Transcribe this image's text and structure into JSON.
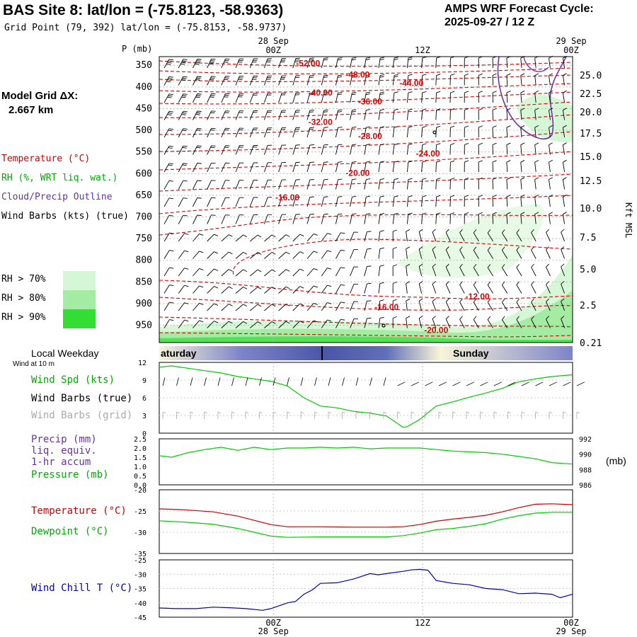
{
  "header": {
    "title": "BAS Site 8:  lat/lon = (-75.8123, -58.9363)",
    "grid_point": "Grid Point (79, 392) lat/lon = (-75.8153, -58.9737)",
    "cycle_line1": "AMPS WRF Forecast Cycle:",
    "cycle_line2": "2025-09-27 / 12  Z"
  },
  "legend": {
    "model_grid_line1": "Model Grid ΔX:",
    "model_grid_line2": "2.667 km",
    "temperature": "Temperature (°C)",
    "rh": "RH (%, WRT liq. wat.)",
    "cloud": "Cloud/Precip Outline",
    "wind_barbs": "Wind Barbs (kts) (true)",
    "rh70": "RH > 70%",
    "rh80": "RH > 80%",
    "rh90": "RH > 90%",
    "rh_colors": [
      "#d6f7d6",
      "#a4eba4",
      "#33dd33"
    ]
  },
  "time_axis": {
    "top_dates": [
      "28 Sep",
      "29 Sep"
    ],
    "top_times": [
      "00Z",
      "12Z",
      "00Z"
    ],
    "bottom_times": [
      "00Z",
      "12Z",
      "00Z"
    ],
    "bottom_dates": [
      "28 Sep",
      "29 Sep"
    ],
    "weekday_label": "Local Weekday",
    "weekday_left": "aturday",
    "weekday_right": "Sunday",
    "wind_at": "Wind at 10 m"
  },
  "chart_data": [
    {
      "type": "contour",
      "name": "cross-section",
      "ylabel_left": "P (mb)",
      "ylabel_right": "Kft MSL",
      "pressure_ticks": [
        350,
        400,
        450,
        500,
        550,
        600,
        650,
        700,
        750,
        800,
        850,
        900,
        950
      ],
      "height_ticks": [
        "25.0",
        "22.5",
        "20.0",
        "17.5",
        "15.0",
        "12.5",
        "10.0",
        "7.5",
        "5.0",
        "2.5",
        "0.21"
      ],
      "temperature_labels": [
        {
          "text": "-52.00",
          "t": 0.36,
          "p": 352
        },
        {
          "text": "-48.00",
          "t": 0.48,
          "p": 378
        },
        {
          "text": "-44.00",
          "t": 0.61,
          "p": 398
        },
        {
          "text": "-40.00",
          "t": 0.39,
          "p": 420
        },
        {
          "text": "-36.00",
          "t": 0.51,
          "p": 440
        },
        {
          "text": "-32.00",
          "t": 0.39,
          "p": 488
        },
        {
          "text": "-28.00",
          "t": 0.51,
          "p": 520
        },
        {
          "text": "-24.00",
          "t": 0.65,
          "p": 560
        },
        {
          "text": "-20.00",
          "t": 0.48,
          "p": 605
        },
        {
          "text": "-16.00",
          "t": 0.31,
          "p": 662
        },
        {
          "text": "-12.00",
          "t": 0.77,
          "p": 890
        },
        {
          "text": "-16.00",
          "t": 0.55,
          "p": 915
        },
        {
          "text": "-20.00",
          "t": 0.67,
          "p": 968
        }
      ]
    },
    {
      "type": "line",
      "name": "wind",
      "ylim": [
        0,
        12
      ],
      "y_ticks": [
        0,
        3,
        6,
        9,
        12
      ],
      "label_speed": "Wind Spd (kts)",
      "label_barbs_true": "Wind Barbs (true)",
      "label_barbs_grid": "Wind Barbs (grid)",
      "t": [
        0,
        0.03,
        0.07,
        0.11,
        0.15,
        0.19,
        0.23,
        0.27,
        0.31,
        0.35,
        0.39,
        0.43,
        0.47,
        0.51,
        0.55,
        0.59,
        0.6,
        0.63,
        0.67,
        0.71,
        0.75,
        0.79,
        0.83,
        0.87,
        0.91,
        0.95,
        1.0
      ],
      "values": [
        11.2,
        11.4,
        11.0,
        10.6,
        10.2,
        9.6,
        9.2,
        8.8,
        8.0,
        6.0,
        4.6,
        4.3,
        3.7,
        3.4,
        2.9,
        1.0,
        1.1,
        2.3,
        4.6,
        5.3,
        6.1,
        6.8,
        7.6,
        8.7,
        9.2,
        9.6,
        9.9
      ]
    },
    {
      "type": "line",
      "name": "pressure",
      "ylim_left": [
        0.0,
        2.5
      ],
      "left_ticks": [
        "0.0",
        "0.5",
        "1.0",
        "1.5",
        "2.0",
        "2.5"
      ],
      "ylim_right": [
        986,
        992
      ],
      "right_ticks": [
        986,
        988,
        990,
        992
      ],
      "right_unit": "(mb)",
      "label_precip": "Precip (mm)",
      "label_liq": "liq. equiv.",
      "label_accum": "1-hr accum",
      "label_pressure": "Pressure (mb)",
      "t": [
        0,
        0.03,
        0.07,
        0.11,
        0.15,
        0.19,
        0.23,
        0.27,
        0.31,
        0.35,
        0.39,
        0.43,
        0.47,
        0.51,
        0.55,
        0.59,
        0.63,
        0.67,
        0.71,
        0.75,
        0.79,
        0.83,
        0.87,
        0.91,
        0.95,
        1.0
      ],
      "values": [
        989.8,
        989.6,
        990.2,
        990.6,
        990.9,
        990.5,
        990.9,
        990.6,
        990.8,
        990.8,
        990.9,
        990.8,
        990.9,
        990.7,
        990.8,
        990.8,
        990.8,
        990.6,
        990.4,
        990.3,
        990.2,
        990.0,
        989.7,
        989.4,
        988.9,
        988.7
      ]
    },
    {
      "type": "line",
      "name": "temperature-dewpoint",
      "ylim": [
        -35,
        -20
      ],
      "y_ticks": [
        -20,
        -25,
        -30,
        -35
      ],
      "series": [
        {
          "name": "Temperature (°C)",
          "color": "#cc0000",
          "t": [
            0,
            0.06,
            0.13,
            0.19,
            0.23,
            0.27,
            0.31,
            0.39,
            0.47,
            0.55,
            0.59,
            0.63,
            0.67,
            0.71,
            0.75,
            0.79,
            0.83,
            0.87,
            0.91,
            0.95,
            1.0
          ],
          "values": [
            -24.5,
            -24.7,
            -25.2,
            -26.2,
            -27.2,
            -28.2,
            -28.7,
            -28.7,
            -28.8,
            -28.8,
            -28.7,
            -28.2,
            -27.4,
            -26.9,
            -26.5,
            -26.0,
            -25.2,
            -24.2,
            -23.4,
            -23.3,
            -23.5
          ]
        },
        {
          "name": "Dewpoint (°C)",
          "color": "#00cc00",
          "t": [
            0,
            0.06,
            0.13,
            0.19,
            0.23,
            0.27,
            0.31,
            0.39,
            0.47,
            0.55,
            0.59,
            0.63,
            0.67,
            0.71,
            0.75,
            0.79,
            0.83,
            0.87,
            0.91,
            0.95,
            1.0
          ],
          "values": [
            -27.3,
            -27.6,
            -28.1,
            -29.1,
            -30.0,
            -30.9,
            -31.2,
            -31.1,
            -31.1,
            -31.1,
            -30.8,
            -30.2,
            -29.4,
            -29.1,
            -28.6,
            -28.0,
            -26.9,
            -26.1,
            -25.5,
            -25.3,
            -25.3
          ]
        }
      ]
    },
    {
      "type": "line",
      "name": "wind-chill",
      "ylim": [
        -45,
        -25
      ],
      "y_ticks": [
        -25,
        -30,
        -35,
        -40,
        -45
      ],
      "label": "Wind Chill T (°C)",
      "t": [
        0,
        0.04,
        0.09,
        0.13,
        0.17,
        0.21,
        0.25,
        0.27,
        0.31,
        0.33,
        0.35,
        0.37,
        0.39,
        0.43,
        0.47,
        0.51,
        0.53,
        0.55,
        0.59,
        0.61,
        0.63,
        0.65,
        0.67,
        0.71,
        0.75,
        0.79,
        0.83,
        0.87,
        0.91,
        0.95,
        0.97,
        1.0
      ],
      "values": [
        -41.8,
        -42.0,
        -42.0,
        -41.5,
        -41.7,
        -42.0,
        -42.6,
        -42.0,
        -40.0,
        -39.5,
        -37.0,
        -35.5,
        -33.2,
        -33.0,
        -31.7,
        -29.8,
        -30.2,
        -29.8,
        -29.0,
        -28.5,
        -28.3,
        -28.6,
        -32.2,
        -33.2,
        -33.7,
        -35.0,
        -35.4,
        -36.8,
        -36.6,
        -37.0,
        -38.2,
        -37.0
      ]
    }
  ]
}
